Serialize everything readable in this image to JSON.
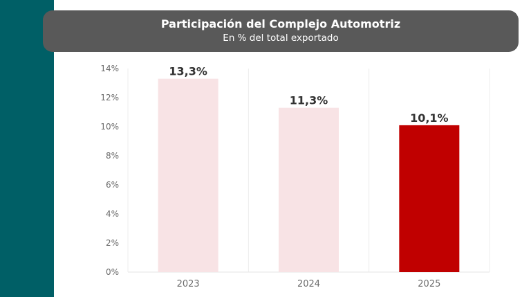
{
  "chart_data": {
    "type": "bar",
    "title": "Participación del Complejo Automotriz",
    "subtitle": "En % del total exportado",
    "categories": [
      "2023",
      "2024",
      "2025"
    ],
    "values": [
      13.3,
      11.3,
      10.1
    ],
    "data_labels": [
      "13,3%",
      "11,3%",
      "10,1%"
    ],
    "bar_colors": [
      "#f8e3e5",
      "#f8e3e5",
      "#c00000"
    ],
    "ylim": [
      0,
      14
    ],
    "yticks": [
      0,
      2,
      4,
      6,
      8,
      10,
      12,
      14
    ],
    "ytick_labels": [
      "0%",
      "2%",
      "4%",
      "6%",
      "8%",
      "10%",
      "12%",
      "14%"
    ],
    "grid": "vertical category separators",
    "legend": "none"
  },
  "colors": {
    "sidebar": "#005f66",
    "title_box": "#595959"
  }
}
